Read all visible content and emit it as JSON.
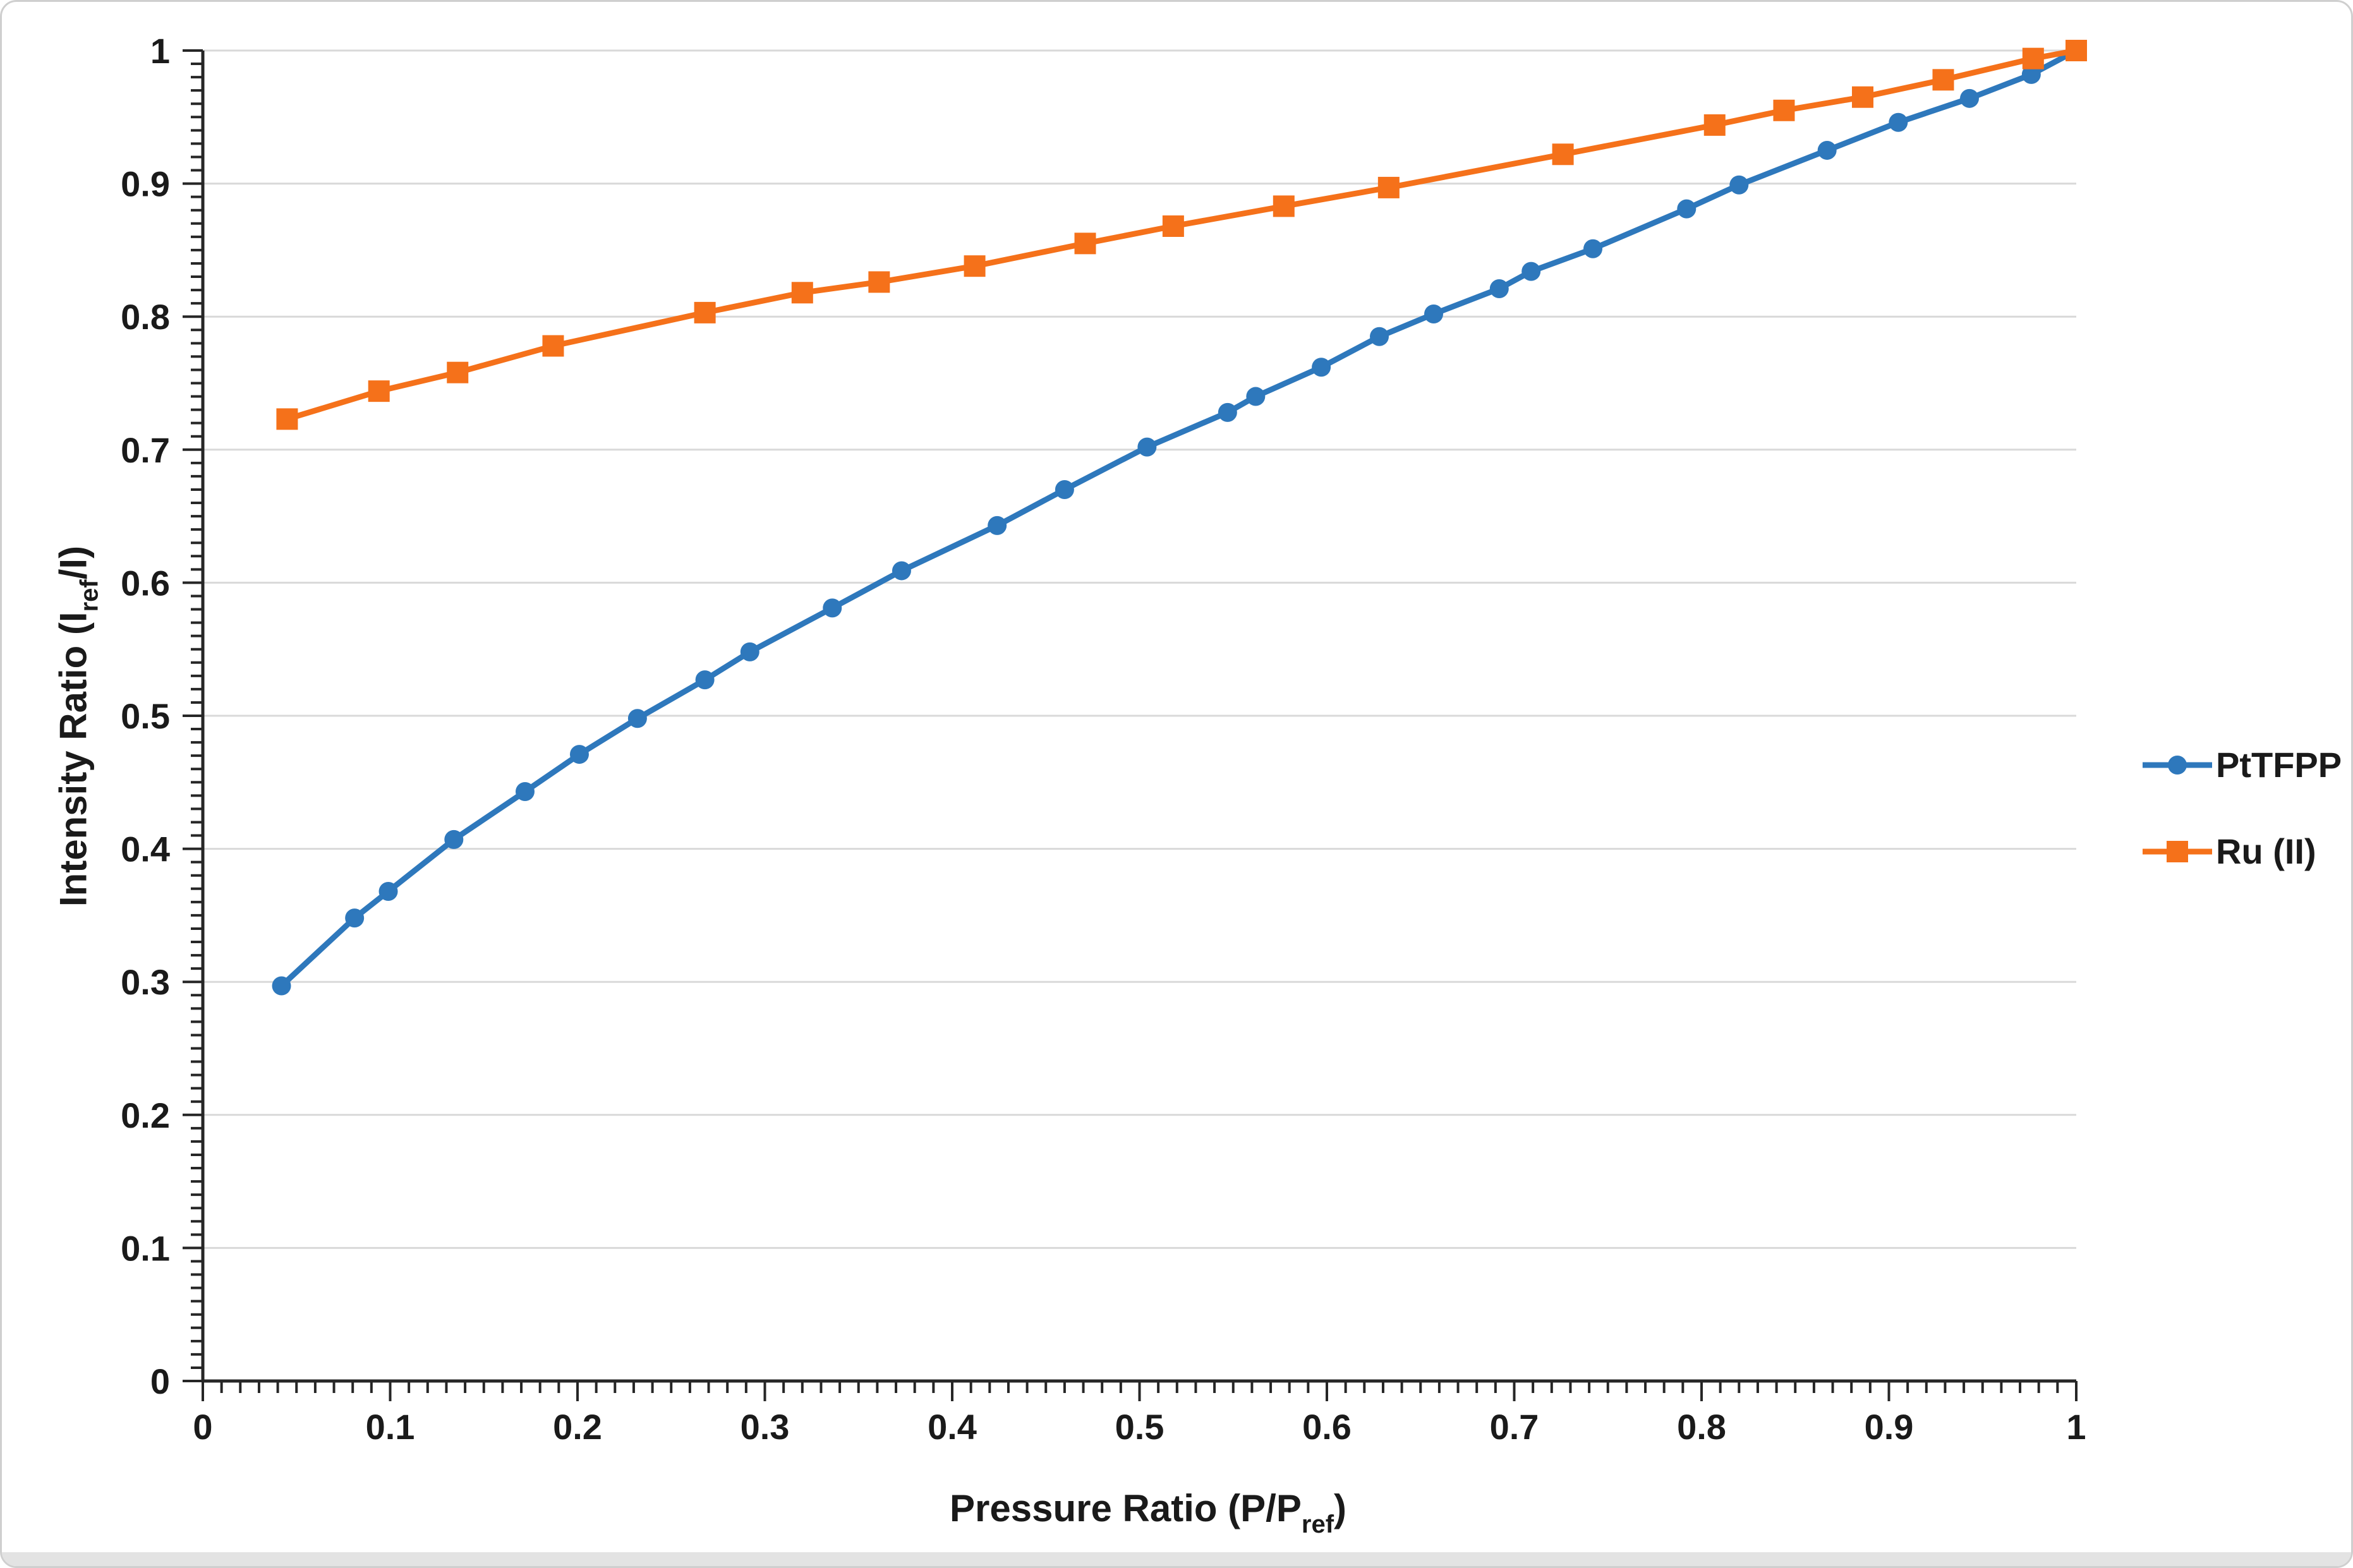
{
  "chart_data": {
    "type": "line",
    "title": "",
    "grid": "horizontal-only",
    "legend_position": "right-middle",
    "background": "#ffffff",
    "gridline_color": "#d9d9d9",
    "axis_color": "#262626",
    "text_color": "#1a1a1a",
    "x_axis": {
      "label_main": "Pressure Ratio (P/P",
      "label_sub": "ref",
      "label_end": ")",
      "min": 0,
      "max": 1,
      "major_tick_step": 0.1,
      "minor_tick_step": 0.01,
      "tick_values": [
        0,
        0.1,
        0.2,
        0.3,
        0.4,
        0.5,
        0.6,
        0.7,
        0.8,
        0.9,
        1
      ],
      "tick_labels": [
        "0",
        "0.1",
        "0.2",
        "0.3",
        "0.4",
        "0.5",
        "0.6",
        "0.7",
        "0.8",
        "0.9",
        "1"
      ]
    },
    "y_axis": {
      "label_main": "Intensity Ratio (I",
      "label_sub": "ref",
      "label_end": "/I)",
      "min": 0,
      "max": 1,
      "major_tick_step": 0.1,
      "minor_tick_step": 0.01,
      "tick_values": [
        0,
        0.1,
        0.2,
        0.3,
        0.4,
        0.5,
        0.6,
        0.7,
        0.8,
        0.9,
        1
      ],
      "tick_labels": [
        "0",
        "0.1",
        "0.2",
        "0.3",
        "0.4",
        "0.5",
        "0.6",
        "0.7",
        "0.8",
        "0.9",
        "1"
      ]
    },
    "series": [
      {
        "name": "PtTFPP",
        "color": "#2e78bc",
        "marker": "circle",
        "x": [
          0.042,
          0.081,
          0.099,
          0.134,
          0.172,
          0.201,
          0.232,
          0.268,
          0.292,
          0.336,
          0.373,
          0.424,
          0.46,
          0.504,
          0.547,
          0.562,
          0.597,
          0.628,
          0.657,
          0.692,
          0.709,
          0.742,
          0.792,
          0.82,
          0.867,
          0.905,
          0.943,
          0.976,
          1.0
        ],
        "y": [
          0.297,
          0.348,
          0.368,
          0.407,
          0.443,
          0.471,
          0.498,
          0.527,
          0.548,
          0.581,
          0.609,
          0.643,
          0.67,
          0.702,
          0.728,
          0.74,
          0.762,
          0.785,
          0.802,
          0.821,
          0.834,
          0.851,
          0.881,
          0.899,
          0.925,
          0.946,
          0.964,
          0.982,
          1.0
        ]
      },
      {
        "name": "Ru (II)",
        "color": "#f5711a",
        "marker": "square",
        "x": [
          0.045,
          0.094,
          0.136,
          0.187,
          0.268,
          0.32,
          0.361,
          0.412,
          0.471,
          0.518,
          0.577,
          0.633,
          0.726,
          0.807,
          0.844,
          0.886,
          0.929,
          0.977,
          1.0
        ],
        "y": [
          0.723,
          0.744,
          0.758,
          0.778,
          0.803,
          0.818,
          0.826,
          0.838,
          0.855,
          0.868,
          0.883,
          0.897,
          0.922,
          0.944,
          0.955,
          0.965,
          0.978,
          0.994,
          1.0
        ]
      }
    ]
  }
}
